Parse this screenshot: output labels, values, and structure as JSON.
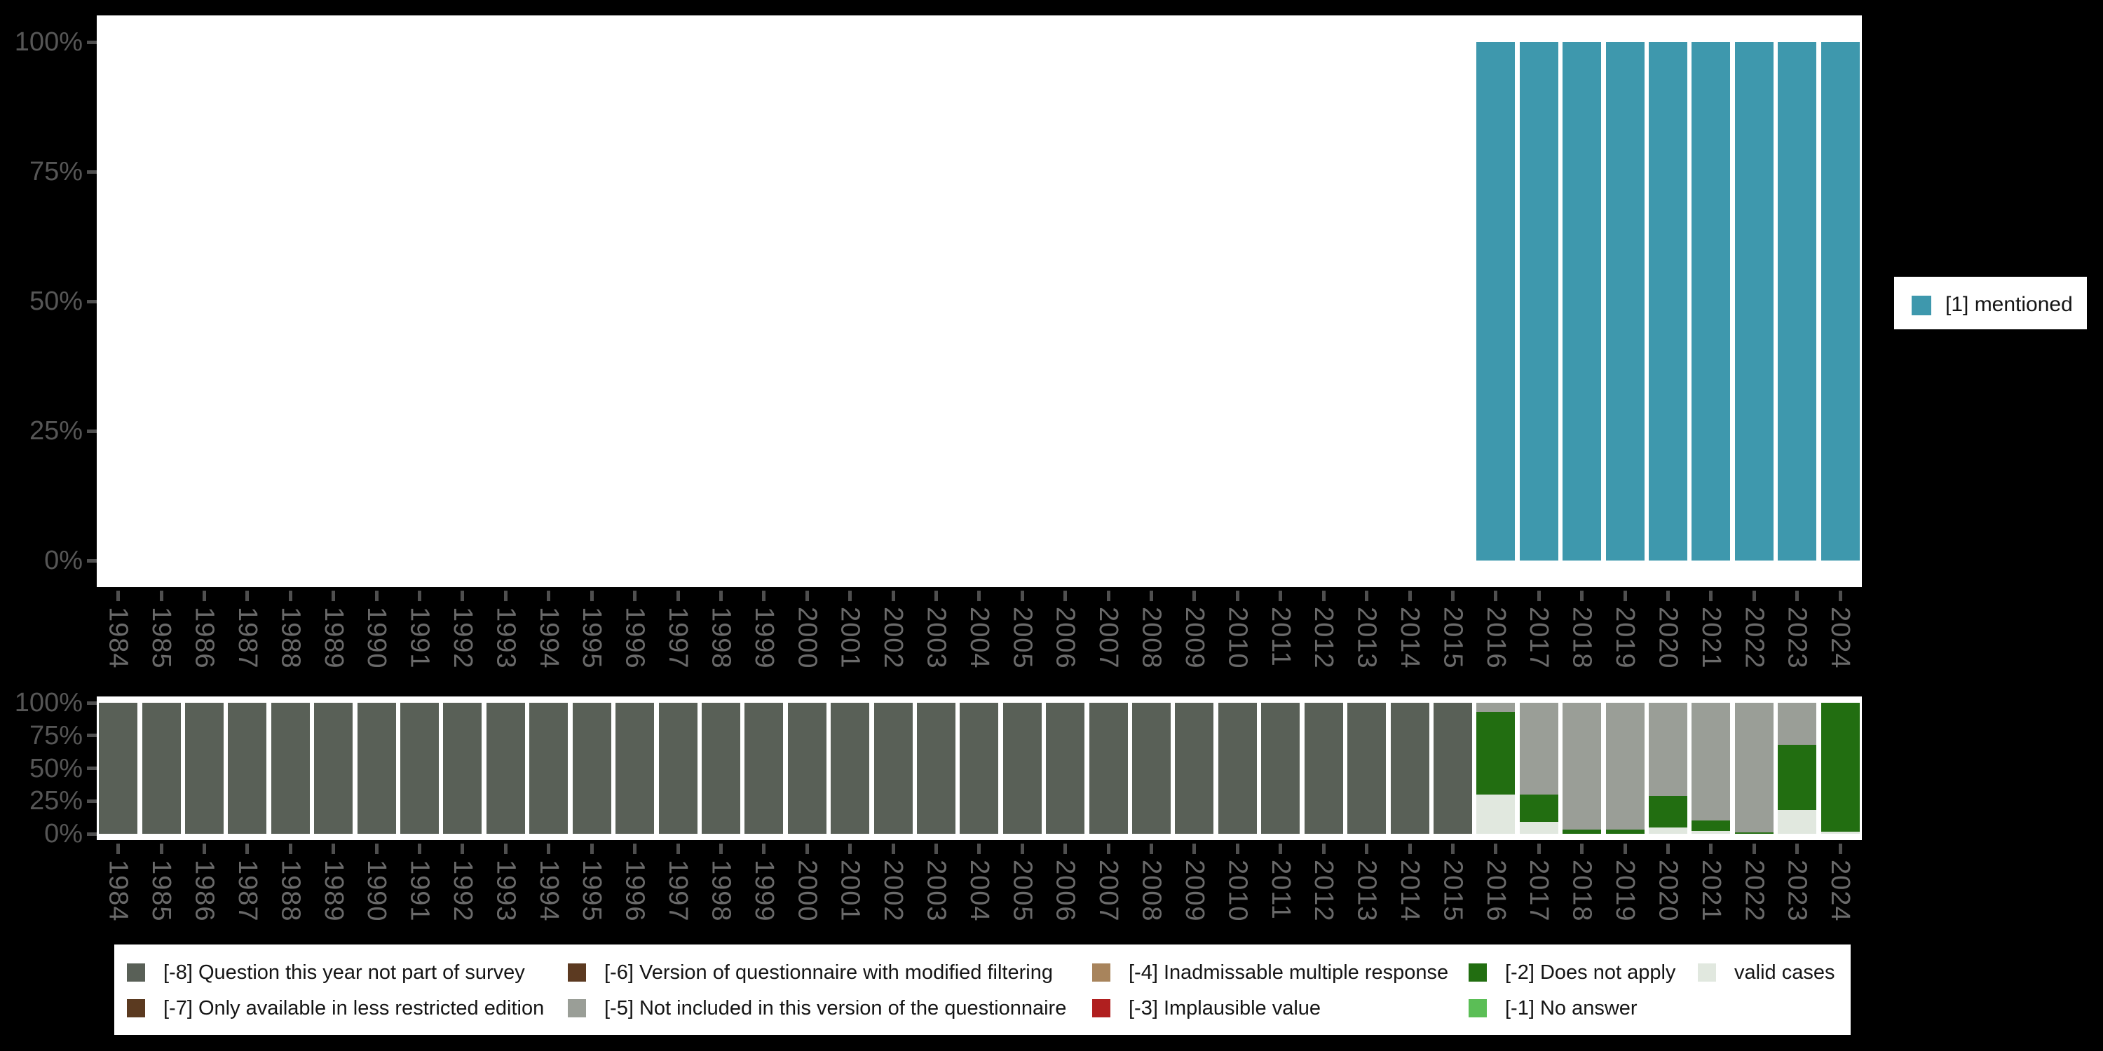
{
  "colors": {
    "page_bg": "#000000",
    "plot_bg": "#ffffff",
    "axis_tick": "#4f4f4f",
    "y_label_text": "#565656",
    "x_label_text": "#6a6a6a",
    "legend_text": "#151515",
    "mentioned": "#3E98AD",
    "not_part_of_survey": "#596057",
    "less_restricted": "#5B3A20",
    "modified_filtering": "#5C3A21",
    "not_included": "#9A9E97",
    "inadmissable": "#A8845C",
    "implausible": "#B01F1F",
    "does_not_apply": "#226E11",
    "no_answer": "#5BBE56",
    "valid": "#E1E8DF"
  },
  "top_legend": {
    "label": "[1] mentioned",
    "color_key": "mentioned"
  },
  "bottom_legend": {
    "rows": [
      [
        {
          "color_key": "not_part_of_survey",
          "label": "[-8] Question this year not part of survey"
        },
        {
          "color_key": "modified_filtering",
          "label": "[-6] Version of questionnaire with modified filtering"
        },
        {
          "color_key": "inadmissable",
          "label": "[-4] Inadmissable multiple response"
        },
        {
          "color_key": "does_not_apply",
          "label": "[-2] Does not apply"
        },
        {
          "color_key": "valid",
          "label": "valid cases"
        }
      ],
      [
        {
          "color_key": "less_restricted",
          "label": "[-7] Only available in less restricted edition"
        },
        {
          "color_key": "not_included",
          "label": "[-5] Not included in this version of the questionnaire"
        },
        {
          "color_key": "implausible",
          "label": "[-3] Implausible value"
        },
        {
          "color_key": "no_answer",
          "label": "[-1] No answer"
        }
      ]
    ]
  },
  "chart_data": [
    {
      "id": "top",
      "type": "bar",
      "stacked": true,
      "title": "",
      "xlabel": "",
      "ylabel": "",
      "ylim": [
        0,
        100
      ],
      "y_tick_labels": [
        "100%",
        "75%",
        "50%",
        "25%",
        "0%"
      ],
      "y_tick_values": [
        100,
        75,
        50,
        25,
        0
      ],
      "grid": false,
      "legend_position": "right",
      "categories": [
        1984,
        1985,
        1986,
        1987,
        1988,
        1989,
        1990,
        1991,
        1992,
        1993,
        1994,
        1995,
        1996,
        1997,
        1998,
        1999,
        2000,
        2001,
        2002,
        2003,
        2004,
        2005,
        2006,
        2007,
        2008,
        2009,
        2010,
        2011,
        2012,
        2013,
        2014,
        2015,
        2016,
        2017,
        2018,
        2019,
        2020,
        2021,
        2022,
        2023,
        2024
      ],
      "series": [
        {
          "name": "[1] mentioned",
          "color_key": "mentioned",
          "values": [
            null,
            null,
            null,
            null,
            null,
            null,
            null,
            null,
            null,
            null,
            null,
            null,
            null,
            null,
            null,
            null,
            null,
            null,
            null,
            null,
            null,
            null,
            null,
            null,
            null,
            null,
            null,
            null,
            null,
            null,
            null,
            null,
            100,
            100,
            100,
            100,
            100,
            100,
            100,
            100,
            100
          ]
        }
      ]
    },
    {
      "id": "bottom",
      "type": "bar",
      "stacked": true,
      "title": "",
      "xlabel": "",
      "ylabel": "",
      "ylim": [
        0,
        100
      ],
      "y_tick_labels": [
        "100%",
        "75%",
        "50%",
        "25%",
        "0%"
      ],
      "y_tick_values": [
        100,
        75,
        50,
        25,
        0
      ],
      "grid": false,
      "legend_position": "bottom",
      "categories": [
        1984,
        1985,
        1986,
        1987,
        1988,
        1989,
        1990,
        1991,
        1992,
        1993,
        1994,
        1995,
        1996,
        1997,
        1998,
        1999,
        2000,
        2001,
        2002,
        2003,
        2004,
        2005,
        2006,
        2007,
        2008,
        2009,
        2010,
        2011,
        2012,
        2013,
        2014,
        2015,
        2016,
        2017,
        2018,
        2019,
        2020,
        2021,
        2022,
        2023,
        2024
      ],
      "series": [
        {
          "name": "valid cases",
          "color_key": "valid",
          "values": [
            0,
            0,
            0,
            0,
            0,
            0,
            0,
            0,
            0,
            0,
            0,
            0,
            0,
            0,
            0,
            0,
            0,
            0,
            0,
            0,
            0,
            0,
            0,
            0,
            0,
            0,
            0,
            0,
            0,
            0,
            0,
            0,
            30,
            9,
            0,
            0,
            5,
            2,
            0,
            18,
            1.5
          ]
        },
        {
          "name": "[-2] Does not apply",
          "color_key": "does_not_apply",
          "values": [
            0,
            0,
            0,
            0,
            0,
            0,
            0,
            0,
            0,
            0,
            0,
            0,
            0,
            0,
            0,
            0,
            0,
            0,
            0,
            0,
            0,
            0,
            0,
            0,
            0,
            0,
            0,
            0,
            0,
            0,
            0,
            0,
            63,
            21,
            3,
            3,
            24,
            8,
            1,
            50,
            98.5
          ]
        },
        {
          "name": "[-5] Not included in this version of the questionnaire",
          "color_key": "not_included",
          "values": [
            0,
            0,
            0,
            0,
            0,
            0,
            0,
            0,
            0,
            0,
            0,
            0,
            0,
            0,
            0,
            0,
            0,
            0,
            0,
            0,
            0,
            0,
            0,
            0,
            0,
            0,
            0,
            0,
            0,
            0,
            0,
            0,
            7,
            70,
            97,
            97,
            71,
            90,
            99,
            32,
            0
          ]
        },
        {
          "name": "[-8] Question this year not part of survey",
          "color_key": "not_part_of_survey",
          "values": [
            100,
            100,
            100,
            100,
            100,
            100,
            100,
            100,
            100,
            100,
            100,
            100,
            100,
            100,
            100,
            100,
            100,
            100,
            100,
            100,
            100,
            100,
            100,
            100,
            100,
            100,
            100,
            100,
            100,
            100,
            100,
            100,
            0,
            0,
            0,
            0,
            0,
            0,
            0,
            0,
            0
          ]
        }
      ]
    }
  ]
}
